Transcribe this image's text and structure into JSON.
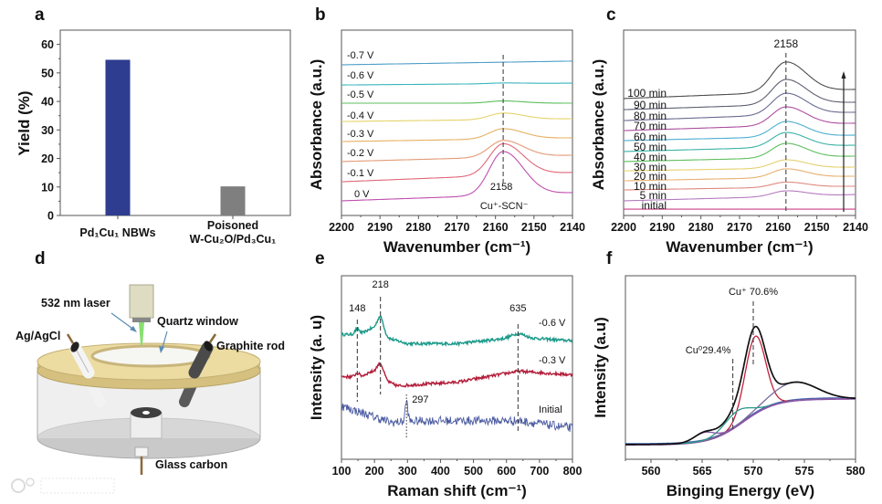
{
  "panels": [
    "a",
    "b",
    "c",
    "d",
    "e",
    "f"
  ],
  "chart_data": [
    {
      "type": "bar",
      "panel": "a",
      "categories": [
        [
          "Pd₁Cu₁ NBWs"
        ],
        [
          "Poisoned",
          "W-Cu₂O/Pd₃Cu₁"
        ]
      ],
      "values": [
        54.6,
        10.2
      ],
      "colors": [
        "#2e3d8f",
        "#7f7f7f"
      ],
      "xlabel": "",
      "ylabel": "Yield (%)",
      "ylim": [
        0,
        65
      ],
      "y_ticks": [
        "0",
        "10",
        "20",
        "30",
        "40",
        "50",
        "60"
      ]
    },
    {
      "type": "line",
      "panel": "b",
      "xlabel": "Wavenumber (cm⁻¹)",
      "ylabel": "Absorbance (a.u.)",
      "xlim": [
        2200,
        2140
      ],
      "ylim": [
        0,
        100
      ],
      "x_ticks": [
        "2200",
        "2190",
        "2180",
        "2170",
        "2160",
        "2150",
        "2140"
      ],
      "peak_center": 2158,
      "annotations": [
        "2158",
        "Cu⁺-SCN⁻"
      ],
      "series": [
        {
          "name": "-0.7 V",
          "color": "#4f9fc8",
          "baseline": [
            81.3,
            83.3
          ],
          "peak": 0
        },
        {
          "name": "-0.6 V",
          "color": "#3ab5bb",
          "baseline": [
            70.4,
            71.4
          ],
          "peak": 0.4
        },
        {
          "name": "-0.5 V",
          "color": "#5cbf5c",
          "baseline": [
            60.6,
            60.6
          ],
          "peak": 1.2
        },
        {
          "name": "-0.4 V",
          "color": "#e5d36b",
          "baseline": [
            50.7,
            52.2
          ],
          "peak": 3.5
        },
        {
          "name": "-0.3 V",
          "color": "#e6b062",
          "baseline": [
            39.9,
            41.9
          ],
          "peak": 5.5
        },
        {
          "name": "-0.2 V",
          "color": "#e39a76",
          "baseline": [
            29.1,
            32.5
          ],
          "peak": 9
        },
        {
          "name": "-0.1 V",
          "color": "#df6878",
          "baseline": [
            18.2,
            23.2
          ],
          "peak": 17
        },
        {
          "name": "0 V",
          "color": "#c04fae",
          "baseline": [
            7.9,
            12.3
          ],
          "peak": 23.5
        }
      ]
    },
    {
      "type": "line",
      "panel": "c",
      "xlabel": "Wavenumber (cm⁻¹)",
      "ylabel": "Absorbance (a.u.)",
      "xlim": [
        2200,
        2140
      ],
      "ylim": [
        0,
        100
      ],
      "x_ticks": [
        "2200",
        "2190",
        "2180",
        "2170",
        "2160",
        "2150",
        "2140"
      ],
      "peak_center": 2158,
      "annotations": [
        "2158"
      ],
      "series": [
        {
          "name": "initial",
          "color": "#cc3f86",
          "baseline": [
            3.4,
            3.4
          ],
          "peak": 0
        },
        {
          "name": "5 min",
          "color": "#b67bc0",
          "baseline": [
            7.9,
            11.3
          ],
          "peak": 3
        },
        {
          "name": "10 min",
          "color": "#df8a7f",
          "baseline": [
            13.8,
            15.8
          ],
          "peak": 2.8
        },
        {
          "name": "20 min",
          "color": "#e8b070",
          "baseline": [
            18.7,
            21.2
          ],
          "peak": 4.7
        },
        {
          "name": "30 min",
          "color": "#e6d06e",
          "baseline": [
            24.1,
            26.1
          ],
          "peak": 4.5
        },
        {
          "name": "40 min",
          "color": "#5fbf5f",
          "baseline": [
            29.1,
            32.0
          ],
          "peak": 7.8
        },
        {
          "name": "50 min",
          "color": "#3bb3a6",
          "baseline": [
            34.5,
            37.9
          ],
          "peak": 7.9
        },
        {
          "name": "60 min",
          "color": "#4eaed2",
          "baseline": [
            40.4,
            43.3
          ],
          "peak": 8.3
        },
        {
          "name": "70 min",
          "color": "#ad4f9f",
          "baseline": [
            45.8,
            49.8
          ],
          "peak": 10
        },
        {
          "name": "80 min",
          "color": "#6a6a92",
          "baseline": [
            51.2,
            55.7
          ],
          "peak": 11.6
        },
        {
          "name": "90 min",
          "color": "#5e6070",
          "baseline": [
            57.1,
            61.1
          ],
          "peak": 13.5
        },
        {
          "name": "100 min",
          "color": "#4e4e4e",
          "baseline": [
            63.1,
            68.0
          ],
          "peak": 16.3
        }
      ]
    },
    {
      "type": "line",
      "panel": "e",
      "xlabel": "Raman shift (cm⁻¹)",
      "ylabel": "Intensity (a. u)",
      "xlim": [
        100,
        800
      ],
      "ylim": [
        0,
        100
      ],
      "x_ticks": [
        "100",
        "200",
        "300",
        "400",
        "500",
        "600",
        "700",
        "800"
      ],
      "peak_labels": [
        "148",
        "218",
        "635",
        "297"
      ],
      "series": [
        {
          "name": "-0.6 V",
          "color": "#1d9a8a",
          "noise": 0.8,
          "baseline": [
            [
              100,
              68
            ],
            [
              200,
              68
            ],
            [
              300,
              63
            ],
            [
              450,
              63
            ],
            [
              635,
              66.5
            ],
            [
              800,
              64.5
            ]
          ],
          "peaks": [
            {
              "center": 148,
              "height": 3,
              "width": 7
            },
            {
              "center": 190,
              "height": 3,
              "width": 15
            },
            {
              "center": 218,
              "height": 10,
              "width": 10
            },
            {
              "center": 635,
              "height": 2,
              "width": 20
            }
          ]
        },
        {
          "name": "-0.3 V",
          "color": "#b3203c",
          "noise": 0.8,
          "baseline": [
            [
              100,
              45
            ],
            [
              200,
              45
            ],
            [
              270,
              40
            ],
            [
              450,
              42
            ],
            [
              635,
              48
            ],
            [
              800,
              46
            ]
          ],
          "peaks": [
            {
              "center": 148,
              "height": 2,
              "width": 6
            },
            {
              "center": 190,
              "height": 2.5,
              "width": 15
            },
            {
              "center": 218,
              "height": 8,
              "width": 10
            }
          ]
        },
        {
          "name": "Initial",
          "color": "#4a5aa0",
          "noise": 2.4,
          "baseline": [
            [
              100,
              29
            ],
            [
              250,
              20
            ],
            [
              350,
              21
            ],
            [
              635,
              21
            ],
            [
              800,
              17
            ]
          ],
          "peaks": [
            {
              "center": 297,
              "height": 11,
              "width": 4
            }
          ]
        }
      ]
    },
    {
      "type": "line",
      "panel": "f",
      "xlabel": "Binging Energy (eV)",
      "ylabel": "Intensity (a.u)",
      "xlim": [
        557.5,
        580
      ],
      "ylim": [
        0,
        100
      ],
      "x_ticks": [
        "560",
        "565",
        "570",
        "575",
        "580"
      ],
      "annotations": [
        "Cu⁺ 70.6%",
        "Cu⁰29.4%"
      ],
      "background": {
        "low": 8,
        "high": 33,
        "center": 569,
        "scale": 1.6,
        "colors": [
          "#8a3fa8",
          "#3a5fae"
        ]
      },
      "envelope_color": "#111111",
      "components": [
        {
          "center": 570.2,
          "height": 42,
          "width": 1.0,
          "color": "#c0203c"
        },
        {
          "center": 574.0,
          "height": 10,
          "width": 2.2,
          "color": "#7a6b9c"
        },
        {
          "center": 568.4,
          "height": 8,
          "width": 1.3,
          "color": "#2a9a8a"
        },
        {
          "center": 565.2,
          "height": 4.5,
          "width": 1.0,
          "color": "#8a5aa6"
        }
      ]
    }
  ],
  "diagram": {
    "panel": "d",
    "labels": {
      "laser": "532 nm laser",
      "window": "Quartz window",
      "reference": "Ag/AgCl",
      "counter": "Graphite rod",
      "working": "Glass carbon"
    }
  },
  "watermark": "大数跨境"
}
